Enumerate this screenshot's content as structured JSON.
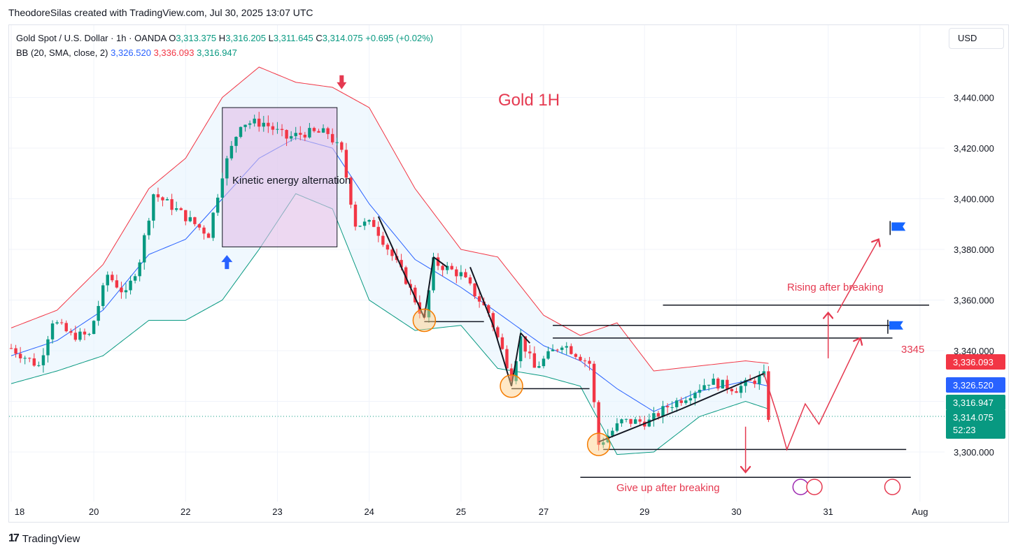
{
  "credit": "TheodoreSilas created with TradingView.com, Jul 30, 2025 13:07 UTC",
  "legend": {
    "symbol": "Gold Spot / U.S. Dollar · 1h · OANDA",
    "o_label": "O",
    "o": "3,313.375",
    "h_label": "H",
    "h": "3,316.205",
    "l_label": "L",
    "l": "3,311.645",
    "c_label": "C",
    "c": "3,314.075",
    "change": "+0.695 (+0.02%)",
    "bb_label": "BB (20, SMA, close, 2)",
    "bb_basis": "3,326.520",
    "bb_upper": "3,336.093",
    "bb_lower": "3,316.947"
  },
  "currency": "USD",
  "footer": {
    "logo_mark": "17",
    "logo_text": "TradingView"
  },
  "colors": {
    "up": "#089981",
    "down": "#f23645",
    "basis": "#2962ff",
    "upper": "#f23645",
    "lower": "#089981",
    "band_fill": "#e3f2fd",
    "annotation": "#e53950",
    "box_fill": "#e1bee7"
  },
  "chart_data": {
    "type": "candlestick",
    "title": "Gold 1H",
    "y_ticks": [
      3300,
      3320,
      3340,
      3360,
      3380,
      3400,
      3420,
      3440
    ],
    "y_tick_labels": [
      "3,300.000",
      "3,320.000",
      "3,340.000",
      "3,360.000",
      "3,380.000",
      "3,400.000",
      "3,420.000",
      "3,440.000"
    ],
    "ylim": [
      3286,
      3452
    ],
    "x_ticks": [
      {
        "label": "18",
        "t": 0
      },
      {
        "label": "20",
        "t": 18
      },
      {
        "label": "22",
        "t": 38
      },
      {
        "label": "23",
        "t": 58
      },
      {
        "label": "24",
        "t": 78
      },
      {
        "label": "25",
        "t": 98
      },
      {
        "label": "27",
        "t": 116
      },
      {
        "label": "29",
        "t": 138
      },
      {
        "label": "30",
        "t": 158
      },
      {
        "label": "31",
        "t": 178
      },
      {
        "label": "Aug",
        "t": 198
      }
    ],
    "price_tags": [
      {
        "label": "3,336.093",
        "value": 3336.093,
        "color": "#f23645"
      },
      {
        "label": "3,326.520",
        "value": 3326.52,
        "color": "#2962ff"
      },
      {
        "label": "3,316.947",
        "value": 3316.947,
        "color": "#089981"
      },
      {
        "label": "3,314.075",
        "value": 3314.075,
        "color": "#089981"
      }
    ],
    "countdown": "52:23",
    "current_price": 3314.075,
    "anchors": [
      {
        "t": 0,
        "p": 3341
      },
      {
        "t": 6,
        "p": 3334
      },
      {
        "t": 9,
        "p": 3352
      },
      {
        "t": 13,
        "p": 3346
      },
      {
        "t": 17,
        "p": 3346
      },
      {
        "t": 21,
        "p": 3370
      },
      {
        "t": 25,
        "p": 3362
      },
      {
        "t": 28,
        "p": 3376
      },
      {
        "t": 31,
        "p": 3402
      },
      {
        "t": 35,
        "p": 3397
      },
      {
        "t": 40,
        "p": 3390
      },
      {
        "t": 43,
        "p": 3386
      },
      {
        "t": 46,
        "p": 3410
      },
      {
        "t": 50,
        "p": 3430
      },
      {
        "t": 55,
        "p": 3430
      },
      {
        "t": 60,
        "p": 3424
      },
      {
        "t": 64,
        "p": 3426
      },
      {
        "t": 69,
        "p": 3426
      },
      {
        "t": 72,
        "p": 3418
      },
      {
        "t": 75,
        "p": 3390
      },
      {
        "t": 79,
        "p": 3390
      },
      {
        "t": 86,
        "p": 3368
      },
      {
        "t": 90,
        "p": 3352
      },
      {
        "t": 92,
        "p": 3375
      },
      {
        "t": 98,
        "p": 3370
      },
      {
        "t": 104,
        "p": 3355
      },
      {
        "t": 109,
        "p": 3330
      },
      {
        "t": 111,
        "p": 3345
      },
      {
        "t": 114,
        "p": 3333
      },
      {
        "t": 120,
        "p": 3343
      },
      {
        "t": 126,
        "p": 3335
      },
      {
        "t": 128,
        "p": 3303
      },
      {
        "t": 133,
        "p": 3312
      },
      {
        "t": 139,
        "p": 3312
      },
      {
        "t": 143,
        "p": 3318
      },
      {
        "t": 147,
        "p": 3322
      },
      {
        "t": 152,
        "p": 3328
      },
      {
        "t": 158,
        "p": 3325
      },
      {
        "t": 164,
        "p": 3330
      },
      {
        "t": 165,
        "p": 3314
      }
    ],
    "band_anchors": [
      {
        "t": 0,
        "mid": 3338,
        "w": 11
      },
      {
        "t": 10,
        "mid": 3344,
        "w": 12
      },
      {
        "t": 20,
        "mid": 3356,
        "w": 18
      },
      {
        "t": 30,
        "mid": 3378,
        "w": 26
      },
      {
        "t": 38,
        "mid": 3384,
        "w": 32
      },
      {
        "t": 46,
        "mid": 3400,
        "w": 40
      },
      {
        "t": 54,
        "mid": 3416,
        "w": 36
      },
      {
        "t": 62,
        "mid": 3424,
        "w": 22
      },
      {
        "t": 70,
        "mid": 3420,
        "w": 24
      },
      {
        "t": 78,
        "mid": 3398,
        "w": 38
      },
      {
        "t": 88,
        "mid": 3376,
        "w": 28
      },
      {
        "t": 98,
        "mid": 3365,
        "w": 15
      },
      {
        "t": 106,
        "mid": 3355,
        "w": 22
      },
      {
        "t": 116,
        "mid": 3342,
        "w": 12
      },
      {
        "t": 124,
        "mid": 3336,
        "w": 10
      },
      {
        "t": 132,
        "mid": 3325,
        "w": 26
      },
      {
        "t": 140,
        "mid": 3316,
        "w": 16
      },
      {
        "t": 150,
        "mid": 3324,
        "w": 10
      },
      {
        "t": 160,
        "mid": 3328,
        "w": 8
      },
      {
        "t": 165,
        "mid": 3326,
        "w": 9
      }
    ],
    "annotations": {
      "box_label": "Kinetic energy alternation",
      "rising_label": "Rising after breaking",
      "giveup_label": "Give up after breaking",
      "level_label": "3345",
      "box": {
        "t0": 46,
        "t1": 71,
        "p0": 3381,
        "p1": 3436
      },
      "levels": [
        {
          "t0": 118,
          "t1": 192,
          "p": 3350
        },
        {
          "t0": 118,
          "t1": 192,
          "p": 3345
        },
        {
          "t0": 142,
          "t1": 200,
          "p": 3358
        },
        {
          "t0": 129,
          "t1": 195,
          "p": 3301
        },
        {
          "t0": 124,
          "t1": 196,
          "p": 3290
        },
        {
          "t0": 90,
          "t1": 103,
          "p": 3351.5
        },
        {
          "t0": 109,
          "t1": 126,
          "p": 3325
        }
      ],
      "circles": [
        {
          "t": 90,
          "p": 3352
        },
        {
          "t": 109,
          "p": 3326
        },
        {
          "t": 128,
          "p": 3303
        }
      ],
      "trend_segments": [
        {
          "t0": 80,
          "p0": 3393,
          "t1": 90,
          "p1": 3353
        },
        {
          "t0": 90,
          "p0": 3353,
          "t1": 92,
          "p1": 3377
        },
        {
          "t0": 92,
          "p0": 3377,
          "t1": 95,
          "p1": 3373
        },
        {
          "t0": 100,
          "p0": 3373,
          "t1": 105,
          "p1": 3350
        },
        {
          "t0": 105,
          "p0": 3350,
          "t1": 109,
          "p1": 3326
        },
        {
          "t0": 109,
          "p0": 3326,
          "t1": 111,
          "p1": 3347
        },
        {
          "t0": 111,
          "p0": 3347,
          "t1": 113,
          "p1": 3343
        },
        {
          "t0": 128,
          "p0": 3304,
          "t1": 146,
          "p1": 3317
        },
        {
          "t0": 146,
          "p0": 3317,
          "t1": 164,
          "p1": 3331
        }
      ],
      "arrows_up": [
        {
          "t": 47,
          "p": 3381
        },
        {
          "t": 72,
          "p": 3436
        }
      ]
    }
  }
}
